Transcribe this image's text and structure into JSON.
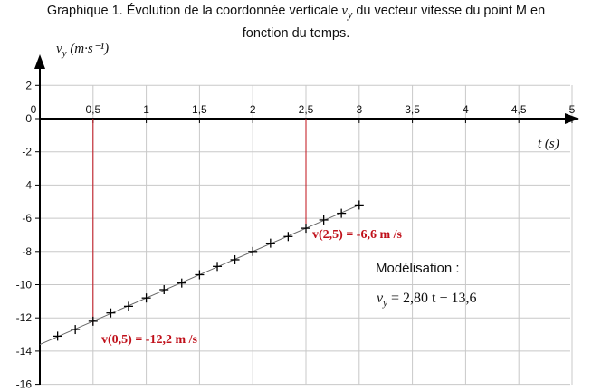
{
  "caption": {
    "prefix": "Graphique 1. Évolution de la coordonnée verticale",
    "var": "v",
    "var_sub": "y",
    "suffix": " du vecteur vitesse du point M en",
    "line2": "fonction du temps."
  },
  "chart_data": {
    "type": "scatter",
    "x_axis": {
      "label": "t",
      "unit": "(s)",
      "range": [
        0,
        5
      ],
      "ticks": [
        0,
        0.5,
        1,
        1.5,
        2,
        2.5,
        3,
        3.5,
        4,
        4.5,
        5
      ],
      "tick_labels": [
        "0",
        "0,5",
        "1",
        "1,5",
        "2",
        "2,5",
        "3",
        "3,5",
        "4",
        "4,5",
        "5"
      ]
    },
    "y_axis": {
      "label": "v",
      "sub": "y",
      "unit": "(m·s⁻¹)",
      "range": [
        -16,
        2
      ],
      "ticks": [
        2,
        0,
        -2,
        -4,
        -6,
        -8,
        -10,
        -12,
        -14,
        -16
      ],
      "tick_labels": [
        "2",
        "0",
        "-2",
        "-4",
        "-6",
        "-8",
        "-10",
        "-12",
        "-14",
        "-16"
      ]
    },
    "grid": true,
    "series": [
      {
        "marker": "+",
        "x": [
          0.167,
          0.333,
          0.5,
          0.667,
          0.833,
          1.0,
          1.167,
          1.333,
          1.5,
          1.667,
          1.833,
          2.0,
          2.167,
          2.333,
          2.5,
          2.667,
          2.833,
          3.0
        ],
        "y": [
          -13.1,
          -12.7,
          -12.2,
          -11.7,
          -11.3,
          -10.8,
          -10.3,
          -9.9,
          -9.4,
          -8.9,
          -8.5,
          -8.0,
          -7.5,
          -7.1,
          -6.6,
          -6.1,
          -5.7,
          -5.2
        ]
      }
    ],
    "model_line": {
      "slope": 2.8,
      "intercept": -13.6,
      "x_range": [
        0,
        3
      ]
    },
    "annotations": [
      {
        "x": 0.5,
        "y": -12.2,
        "text": "v(0,5) = -12,2 m /s",
        "color": "#c0101a"
      },
      {
        "x": 2.5,
        "y": -6.6,
        "text": "v(2,5) = -6,6 m /s",
        "color": "#c0101a"
      }
    ],
    "model_title": "Modélisation :",
    "model_eq": {
      "var": "v",
      "sub": "y",
      "rest": " = 2,80 t  − 13,6"
    }
  }
}
